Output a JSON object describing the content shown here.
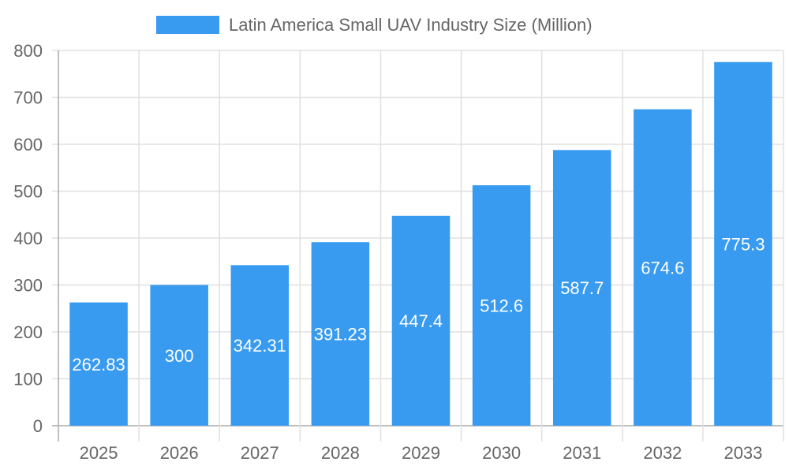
{
  "chart_data": {
    "type": "bar",
    "title": "",
    "xlabel": "",
    "ylabel": "",
    "categories": [
      "2025",
      "2026",
      "2027",
      "2028",
      "2029",
      "2030",
      "2031",
      "2032",
      "2033"
    ],
    "series": [
      {
        "name": "Latin America Small UAV Industry Size (Million)",
        "values": [
          262.83,
          300,
          342.31,
          391.23,
          447.4,
          512.6,
          587.7,
          674.6,
          775.3
        ],
        "color": "#389BF0"
      }
    ],
    "data_labels": [
      "262.83",
      "300",
      "342.31",
      "391.23",
      "447.4",
      "512.6",
      "587.7",
      "674.6",
      "775.3"
    ],
    "ylim": [
      0,
      800
    ],
    "yticks": [
      "0",
      "100",
      "200",
      "300",
      "400",
      "500",
      "600",
      "700",
      "800"
    ],
    "grid": true,
    "legend": "top"
  }
}
